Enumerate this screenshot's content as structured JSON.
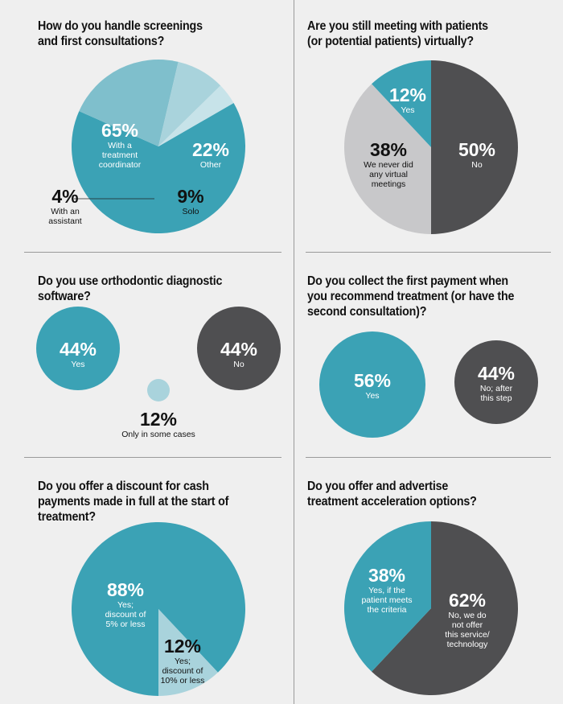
{
  "colors": {
    "teal": "#3ba2b5",
    "light_teal": "#7fbfcc",
    "pale_teal": "#a9d3dc",
    "pale_teal_2": "#c7e3e9",
    "dark": "#4f4f51",
    "gray": "#c8c8ca",
    "background": "#efefef"
  },
  "chart_data": [
    {
      "type": "pie",
      "title": "How do you handle screenings and first consultations?",
      "slices": [
        {
          "value": "65%",
          "percent": 65,
          "label": "With a treatment coordinator",
          "label_lines": [
            "With a",
            "treatment",
            "coordinator"
          ],
          "color": "#3ba2b5"
        },
        {
          "value": "22%",
          "percent": 22,
          "label": "Other",
          "label_lines": [
            "Other"
          ],
          "color": "#7fbfcc"
        },
        {
          "value": "9%",
          "percent": 9,
          "label": "Solo",
          "label_lines": [
            "Solo"
          ],
          "color": "#a9d3dc"
        },
        {
          "value": "4%",
          "percent": 4,
          "label": "With an assistant",
          "label_lines": [
            "With an",
            "assistant"
          ],
          "color": "#c7e3e9"
        }
      ]
    },
    {
      "type": "pie",
      "title": "Are you still meeting with patients (or potential patients) virtually?",
      "slices": [
        {
          "value": "50%",
          "percent": 50,
          "label": "No",
          "label_lines": [
            "No"
          ],
          "color": "#4f4f51"
        },
        {
          "value": "38%",
          "percent": 38,
          "label": "We never did any virtual meetings",
          "label_lines": [
            "We never did",
            "any virtual",
            "meetings"
          ],
          "color": "#c8c8ca"
        },
        {
          "value": "12%",
          "percent": 12,
          "label": "Yes",
          "label_lines": [
            "Yes"
          ],
          "color": "#3ba2b5"
        }
      ]
    },
    {
      "type": "bubble",
      "title": "Do you use orthodontic diagnostic software?",
      "items": [
        {
          "value": "44%",
          "percent": 44,
          "label": "Yes",
          "label_lines": [
            "Yes"
          ],
          "color": "#3ba2b5"
        },
        {
          "value": "44%",
          "percent": 44,
          "label": "No",
          "label_lines": [
            "No"
          ],
          "color": "#4f4f51"
        },
        {
          "value": "12%",
          "percent": 12,
          "label": "Only in some cases",
          "label_lines": [
            "Only in some cases"
          ],
          "color": "#a9d3dc"
        }
      ]
    },
    {
      "type": "bubble",
      "title": "Do you collect the first payment when you recommend treatment (or have the second consultation)?",
      "items": [
        {
          "value": "56%",
          "percent": 56,
          "label": "Yes",
          "label_lines": [
            "Yes"
          ],
          "color": "#3ba2b5"
        },
        {
          "value": "44%",
          "percent": 44,
          "label": "No; after this step",
          "label_lines": [
            "No; after",
            "this step"
          ],
          "color": "#4f4f51"
        }
      ]
    },
    {
      "type": "pie",
      "title": "Do you offer a discount for cash payments made in full at the start of treatment?",
      "slices": [
        {
          "value": "88%",
          "percent": 88,
          "label": "Yes; discount of 5% or less",
          "label_lines": [
            "Yes;",
            "discount of",
            "5% or less"
          ],
          "color": "#3ba2b5"
        },
        {
          "value": "12%",
          "percent": 12,
          "label": "Yes; discount of 10% or less",
          "label_lines": [
            "Yes;",
            "discount of",
            "10% or less"
          ],
          "color": "#a9d3dc"
        }
      ]
    },
    {
      "type": "pie",
      "title": "Do you offer and advertise treatment acceleration options?",
      "slices": [
        {
          "value": "62%",
          "percent": 62,
          "label": "No, we do not offer this service/ technology",
          "label_lines": [
            "No, we do",
            "not offer",
            "this service/",
            "technology"
          ],
          "color": "#4f4f51"
        },
        {
          "value": "38%",
          "percent": 38,
          "label": "Yes, if the patient meets the criteria",
          "label_lines": [
            "Yes, if the",
            "patient meets",
            "the criteria"
          ],
          "color": "#3ba2b5"
        }
      ]
    }
  ]
}
